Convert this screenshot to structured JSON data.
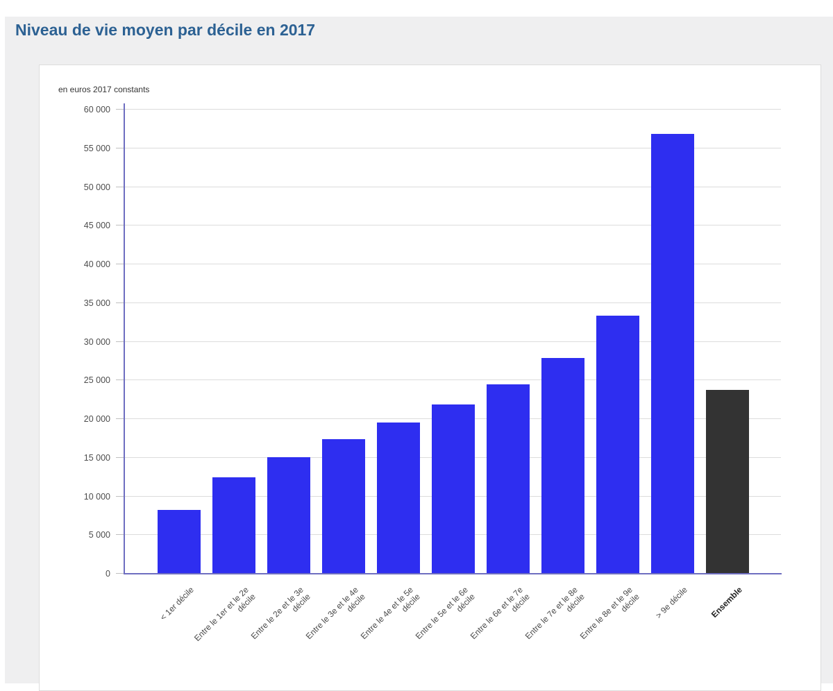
{
  "page": {
    "title": "Niveau de vie moyen par décile en 2017"
  },
  "colors": {
    "title": "#2c6193",
    "page_background": "#ffffff",
    "canvas_background": "#efeff0",
    "panel_border": "#dcdcdc",
    "gridline": "#dcdcdc",
    "axis_line": "#6e6ec0",
    "bar_blue": "#2e2ef0",
    "bar_dark": "#333333",
    "y_tick_label": "#4d4d4d",
    "x_tick_label": "#4a4a4a"
  },
  "chart_data": {
    "type": "bar",
    "title": "Niveau de vie moyen par décile en 2017",
    "unit_label": "en euros 2017 constants",
    "xlabel": "",
    "ylabel": "en euros 2017 constants",
    "categories": [
      "< 1er décile",
      "Entre le 1er et le 2e\ndécile",
      "Entre le 2e et le 3e\ndécile",
      "Entre le 3e et le 4e\ndécile",
      "Entre le 4e et le 5e\ndécile",
      "Entre le 5e et le 6e\ndécile",
      "Entre le 6e et le 7e\ndécile",
      "Entre le 7e et le 8e\ndécile",
      "Entre le 8e et le 9e\ndécile",
      "> 9e décile",
      "Ensemble"
    ],
    "values": [
      8300,
      12500,
      15100,
      17400,
      19600,
      21900,
      24500,
      27900,
      33400,
      56900,
      23800
    ],
    "bar_colors": [
      "#2e2ef0",
      "#2e2ef0",
      "#2e2ef0",
      "#2e2ef0",
      "#2e2ef0",
      "#2e2ef0",
      "#2e2ef0",
      "#2e2ef0",
      "#2e2ef0",
      "#2e2ef0",
      "#333333"
    ],
    "emphasized_category": "Ensemble",
    "ylim": [
      0,
      60000
    ],
    "y_tick_step": 5000,
    "y_tick_labels": [
      "0",
      "5 000",
      "10 000",
      "15 000",
      "20 000",
      "25 000",
      "30 000",
      "35 000",
      "40 000",
      "45 000",
      "50 000",
      "55 000",
      "60 000"
    ],
    "grid": "horizontal",
    "legend": "none"
  }
}
